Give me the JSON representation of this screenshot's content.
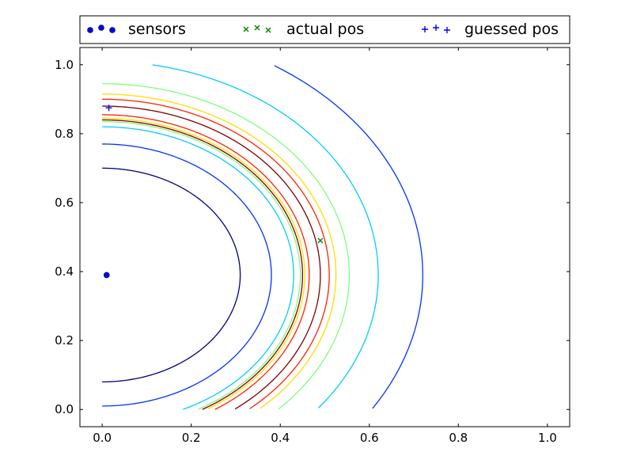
{
  "chart_data": {
    "type": "scatter",
    "title": "",
    "xlabel": "",
    "ylabel": "",
    "xlim": [
      -0.05,
      1.05
    ],
    "ylim": [
      -0.05,
      1.05
    ],
    "xticks": [
      0.0,
      0.2,
      0.4,
      0.6,
      0.8,
      1.0
    ],
    "yticks": [
      0.0,
      0.2,
      0.4,
      0.6,
      0.8,
      1.0
    ],
    "tick_labels_x": [
      "0.0",
      "0.2",
      "0.4",
      "0.6",
      "0.8",
      "1.0"
    ],
    "tick_labels_y": [
      "0.0",
      "0.2",
      "0.4",
      "0.6",
      "0.8",
      "1.0"
    ],
    "legend": {
      "placement": "top, above plot",
      "entries": [
        {
          "label": "sensors",
          "marker": "circle",
          "color": "#0000ff"
        },
        {
          "label": "actual pos",
          "marker": "x",
          "color": "#008000"
        },
        {
          "label": "guessed pos",
          "marker": "plus",
          "color": "#0000ff"
        }
      ]
    },
    "series": [
      {
        "name": "sensors",
        "marker": "circle",
        "color": "#0000ff",
        "points": [
          [
            0.01,
            0.39
          ]
        ]
      },
      {
        "name": "actual pos",
        "marker": "x",
        "color": "#008000",
        "points": [
          [
            0.49,
            0.49
          ]
        ]
      },
      {
        "name": "guessed pos",
        "marker": "plus",
        "color": "#0000ff",
        "points": [
          [
            0.015,
            0.875
          ]
        ]
      }
    ],
    "contours": {
      "center": [
        0.0,
        0.39
      ],
      "levels": [
        {
          "radius": 0.31,
          "color": "#00007f"
        },
        {
          "radius": 0.38,
          "color": "#0033ff"
        },
        {
          "radius": 0.43,
          "color": "#00ccff"
        },
        {
          "radius": 0.445,
          "color": "#7dff7a"
        },
        {
          "radius": 0.455,
          "color": "#ffdd00"
        },
        {
          "radius": 0.465,
          "color": "#ff2200"
        },
        {
          "radius": 0.45,
          "color": "#7f0000"
        },
        {
          "radius": 0.49,
          "color": "#7f0000"
        },
        {
          "radius": 0.51,
          "color": "#ff2200"
        },
        {
          "radius": 0.525,
          "color": "#ffdd00"
        },
        {
          "radius": 0.555,
          "color": "#7dff7a"
        },
        {
          "radius": 0.62,
          "color": "#00ccff"
        },
        {
          "radius": 0.72,
          "color": "#0033ff"
        }
      ]
    },
    "grid": false
  }
}
